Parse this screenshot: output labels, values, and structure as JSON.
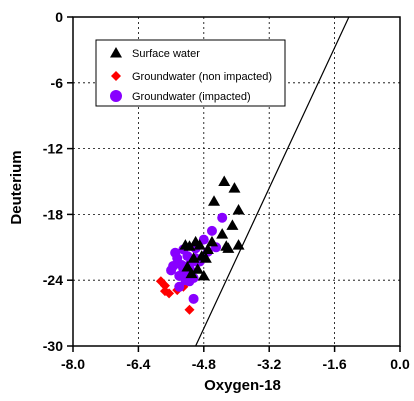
{
  "chart_data": {
    "type": "scatter",
    "title": "",
    "xlabel": "Oxygen-18",
    "ylabel": "Deuterium",
    "xlim": [
      -8.0,
      0.0
    ],
    "ylim": [
      -30,
      0
    ],
    "x_ticks": [
      -8.0,
      -6.4,
      -4.8,
      -3.2,
      -1.6,
      0.0
    ],
    "x_tick_labels": [
      "-8.0",
      "-6.4",
      "-4.8",
      "-3.2",
      "-1.6",
      "0.0"
    ],
    "y_ticks": [
      0,
      -6,
      -12,
      -18,
      -24,
      -30
    ],
    "y_tick_labels": [
      "0",
      "-6",
      "-12",
      "-18",
      "-24",
      "-30"
    ],
    "grid": true,
    "legend_position": "top-left",
    "reference_line": {
      "slope": 8,
      "intercept": 10
    },
    "series": [
      {
        "name": "Surface water",
        "marker": "triangle",
        "color": "#000000",
        "x": [
          -4.3,
          -4.05,
          -4.55,
          -3.95,
          -4.1,
          -4.35,
          -4.6,
          -4.25,
          -4.2,
          -3.95,
          -4.7,
          -4.9,
          -5.0,
          -5.15,
          -5.25,
          -4.85,
          -5.05,
          -4.75,
          -5.2,
          -4.95,
          -5.1,
          -4.8
        ],
        "y": [
          -15.0,
          -15.6,
          -16.8,
          -17.6,
          -19.0,
          -19.8,
          -20.5,
          -20.9,
          -21.1,
          -20.8,
          -21.2,
          -20.8,
          -20.5,
          -20.9,
          -20.8,
          -21.8,
          -22.0,
          -22.0,
          -22.8,
          -23.0,
          -23.4,
          -23.6
        ]
      },
      {
        "name": "Groundwater (non impacted)",
        "marker": "diamond",
        "color": "#ff0000",
        "x": [
          -5.85,
          -5.75,
          -5.75,
          -5.65,
          -5.45,
          -5.3,
          -5.15
        ],
        "y": [
          -24.1,
          -24.5,
          -25.0,
          -25.2,
          -24.9,
          -24.6,
          -26.7
        ]
      },
      {
        "name": "Groundwater (impacted)",
        "marker": "circle",
        "color": "#8800ff",
        "x": [
          -4.35,
          -4.6,
          -4.8,
          -4.5,
          -5.0,
          -5.3,
          -5.5,
          -5.2,
          -5.0,
          -4.9,
          -4.7,
          -5.45,
          -5.15,
          -5.0,
          -5.35,
          -5.55,
          -5.6,
          -5.3,
          -5.1,
          -5.2,
          -5.4,
          -5.05,
          -5.25,
          -5.15,
          -5.4,
          -5.05
        ],
        "y": [
          -18.3,
          -19.5,
          -20.3,
          -21.0,
          -21.1,
          -21.2,
          -21.5,
          -21.8,
          -22.0,
          -22.3,
          -21.4,
          -22.0,
          -22.6,
          -22.3,
          -22.6,
          -22.7,
          -23.1,
          -23.0,
          -23.2,
          -23.5,
          -23.6,
          -23.8,
          -24.0,
          -24.1,
          -24.6,
          -25.7
        ]
      }
    ]
  }
}
